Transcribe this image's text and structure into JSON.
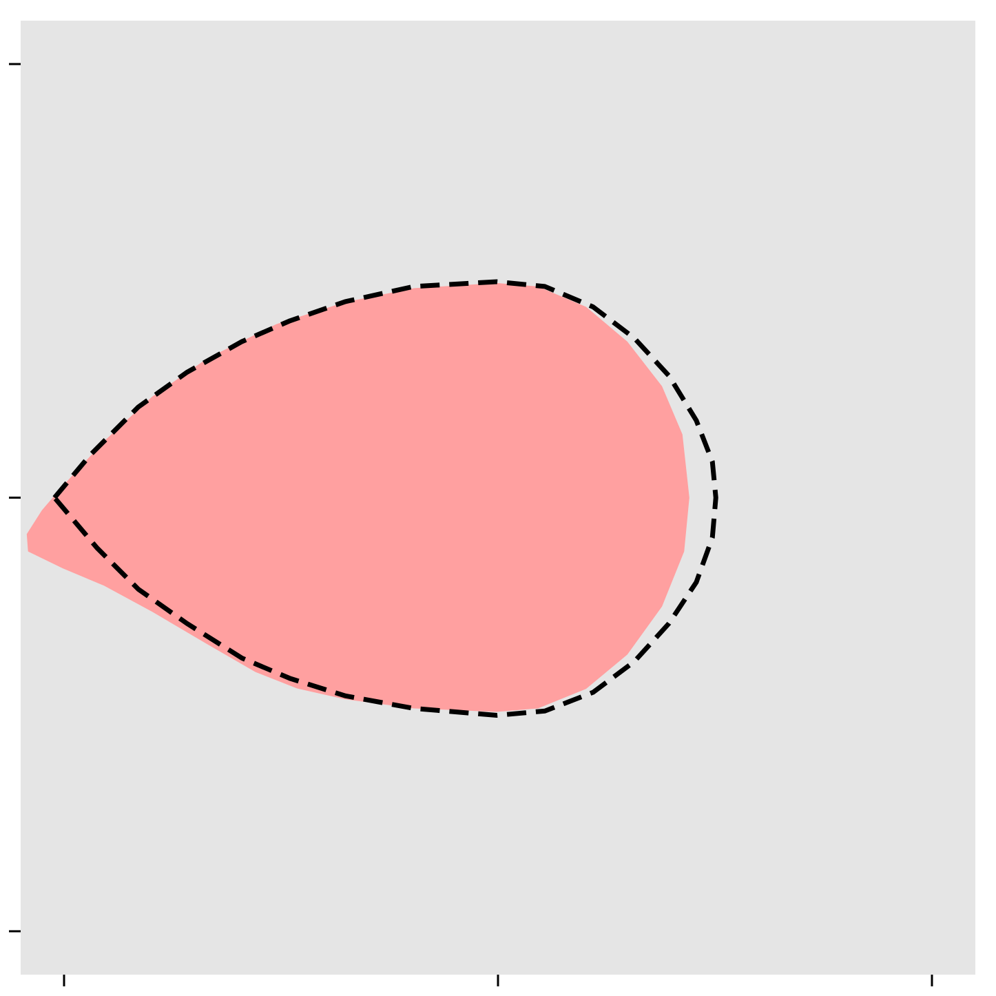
{
  "chart_data": {
    "type": "polygon",
    "xlim": [
      -1.1,
      1.1
    ],
    "ylim": [
      -1.1,
      1.1
    ],
    "xticks": [
      -1,
      0,
      1
    ],
    "yticks": [
      -1,
      0,
      1
    ],
    "series": [
      {
        "color": "#ffa0a0",
        "fill": true,
        "x": [
          -1.086,
          -1.051,
          -1.003,
          -0.908,
          -0.797,
          -0.67,
          -0.511,
          -0.352,
          -0.194,
          -0.003,
          0.092,
          0.203,
          0.298,
          0.378,
          0.425,
          0.441,
          0.429,
          0.378,
          0.298,
          0.203,
          0.092,
          -0.003,
          -0.194,
          -0.352,
          -0.463,
          -0.559,
          -0.67,
          -0.797,
          -0.908,
          -1.003,
          -1.083
        ],
        "y": [
          -0.084,
          -0.029,
          0.027,
          0.13,
          0.233,
          0.321,
          0.4,
          0.451,
          0.483,
          0.495,
          0.487,
          0.44,
          0.36,
          0.257,
          0.146,
          0,
          -0.124,
          -0.251,
          -0.362,
          -0.441,
          -0.486,
          -0.494,
          -0.486,
          -0.465,
          -0.44,
          -0.402,
          -0.338,
          -0.263,
          -0.203,
          -0.163,
          -0.124
        ]
      },
      {
        "color": "#000000",
        "fill": false,
        "dashed": true,
        "x": [
          -1.022,
          -0.94,
          -0.829,
          -0.717,
          -0.59,
          -0.479,
          -0.352,
          -0.194,
          -0.003,
          0.108,
          0.219,
          0.314,
          0.394,
          0.457,
          0.494,
          0.502,
          0.494,
          0.457,
          0.394,
          0.314,
          0.219,
          0.108,
          -0.003,
          -0.194,
          -0.352,
          -0.479,
          -0.59,
          -0.717,
          -0.829,
          -0.924,
          -1.022
        ],
        "y": [
          0,
          0.098,
          0.209,
          0.289,
          0.36,
          0.408,
          0.452,
          0.487,
          0.498,
          0.487,
          0.44,
          0.368,
          0.281,
          0.178,
          0.083,
          0,
          -0.092,
          -0.195,
          -0.29,
          -0.378,
          -0.449,
          -0.492,
          -0.502,
          -0.486,
          -0.457,
          -0.417,
          -0.37,
          -0.29,
          -0.211,
          -0.116,
          0
        ]
      }
    ]
  }
}
